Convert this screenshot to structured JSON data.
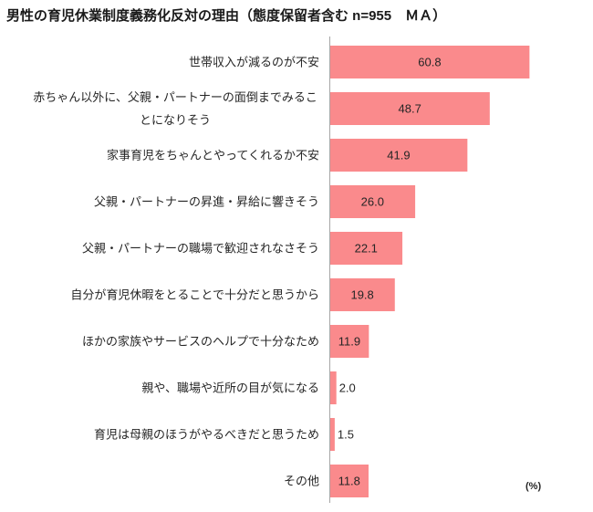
{
  "chart_data": {
    "type": "bar",
    "orientation": "horizontal",
    "title": "男性の育児休業制度義務化反対の理由（態度保留者含む n=955　ＭＡ）",
    "unit": "(%)",
    "categories": [
      "世帯収入が減るのが不安",
      "赤ちゃん以外に、父親・パートナーの面倒までみることになりそう",
      "家事育児をちゃんとやってくれるか不安",
      "父親・パートナーの昇進・昇給に響きそう",
      "父親・パートナーの職場で歓迎されなさそう",
      "自分が育児休暇をとることで十分だと思うから",
      "ほかの家族やサービスのヘルプで十分なため",
      "親や、職場や近所の目が気になる",
      "育児は母親のほうがやるべきだと思うため",
      "その他"
    ],
    "values": [
      60.8,
      48.7,
      41.9,
      26.0,
      22.1,
      19.8,
      11.9,
      2.0,
      1.5,
      11.8
    ],
    "value_labels": [
      "60.8",
      "48.7",
      "41.9",
      "26.0",
      "22.1",
      "19.8",
      "11.9",
      "2.0",
      "1.5",
      "11.8"
    ],
    "xlim": [
      0,
      70
    ],
    "grid": false,
    "legend": "none",
    "bar_color": "#FA8A8C",
    "axis_color": "#A6A6A6"
  }
}
